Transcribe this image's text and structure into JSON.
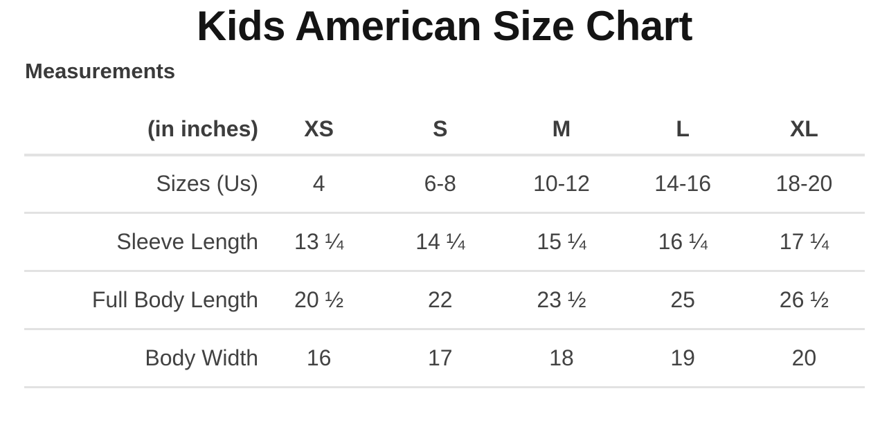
{
  "page": {
    "title": "Kids American Size Chart",
    "section_heading": "Measurements"
  },
  "colors": {
    "title_text": "#141414",
    "heading_text": "#3a3a3a",
    "table_text": "#424242",
    "header_text": "#3d3d3d",
    "divider": "#e2e2e2",
    "background": "#ffffff"
  },
  "chart_data": {
    "type": "table",
    "title": "Kids American Size Chart",
    "subtitle": "Measurements",
    "unit_note": "(in inches)",
    "columns": [
      "(in inches)",
      "XS",
      "S",
      "M",
      "L",
      "XL"
    ],
    "rows": [
      {
        "label": "Sizes (Us)",
        "values": [
          "4",
          "6-8",
          "10-12",
          "14-16",
          "18-20"
        ]
      },
      {
        "label": "Sleeve Length",
        "values": [
          "13 ¼",
          "14 ¼",
          "15 ¼",
          "16 ¼",
          "17 ¼"
        ]
      },
      {
        "label": "Full Body Length",
        "values": [
          "20 ½",
          "22",
          "23 ½",
          "25",
          "26 ½"
        ]
      },
      {
        "label": "Body Width",
        "values": [
          "16",
          "17",
          "18",
          "19",
          "20"
        ]
      }
    ],
    "layout": {
      "grid": "horizontal-dividers-only",
      "label_column_alignment": "right",
      "value_column_alignment": "center"
    }
  }
}
